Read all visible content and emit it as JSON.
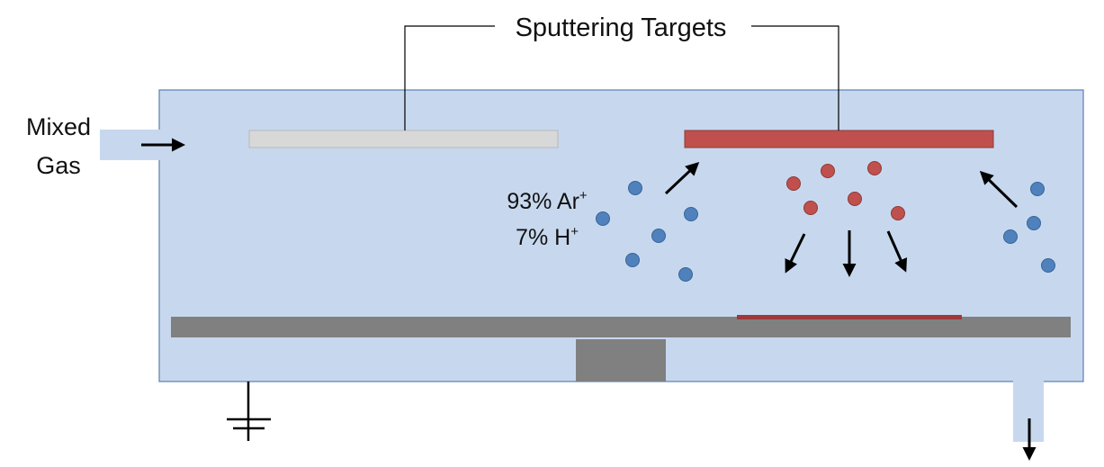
{
  "labels": {
    "title": "Sputtering Targets",
    "inlet_line1": "Mixed",
    "inlet_line2": "Gas",
    "ar_percent": "93% Ar",
    "ar_sup": "+",
    "h_percent": "7% H",
    "h_sup": "+"
  },
  "colors": {
    "chamber_fill": "#c7d8ee",
    "chamber_stroke": "#5b7fb5",
    "target_left": "#d8d8d8",
    "target_right": "#c0504d",
    "substrate": "#808080",
    "film": "#a0383a",
    "ion_blue": "#4f81bd",
    "ion_red": "#c0504d",
    "arrow": "#000000"
  }
}
